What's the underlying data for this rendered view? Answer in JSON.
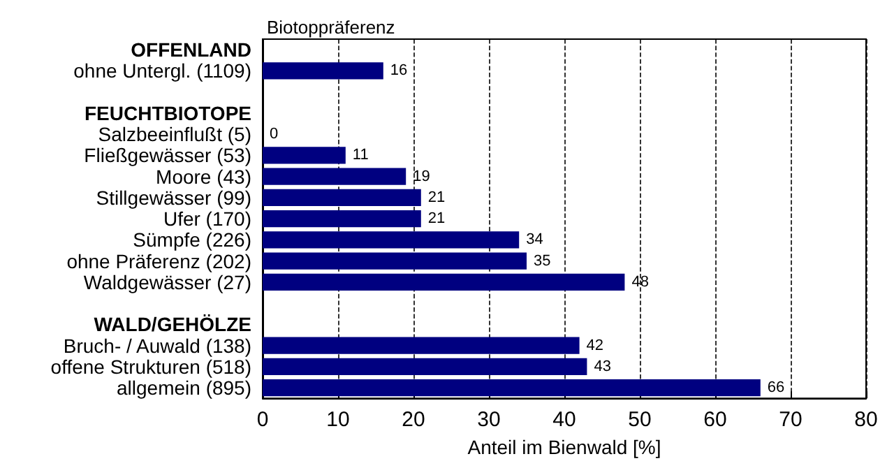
{
  "chart_data": {
    "type": "bar",
    "orientation": "horizontal",
    "title": "Biotoppräferenz",
    "xlabel": "Anteil im Bienwald [%]",
    "categories": [
      "OFFENLAND",
      "ohne Untergl. (1109)",
      null,
      "FEUCHTBIOTOPE",
      "Salzbeeinflußt (5)",
      "Fließgewässer (53)",
      "Moore (43)",
      "Stillgewässer (99)",
      "Ufer (170)",
      "Sümpfe (226)",
      "ohne Präferenz (202)",
      "Waldgewässer (27)",
      null,
      "WALD/GEHÖLZE",
      "Bruch- / Auwald (138)",
      "offene Strukturen (518)",
      "allgemein (895)"
    ],
    "values": [
      null,
      16,
      null,
      null,
      0,
      11,
      19,
      21,
      21,
      34,
      35,
      48,
      null,
      null,
      42,
      43,
      66
    ],
    "color": "#000080",
    "xlim": [
      0,
      80
    ],
    "xticks": [
      0,
      10,
      20,
      30,
      40,
      50,
      60,
      70,
      80
    ],
    "grid": "x",
    "data_labels": true
  }
}
